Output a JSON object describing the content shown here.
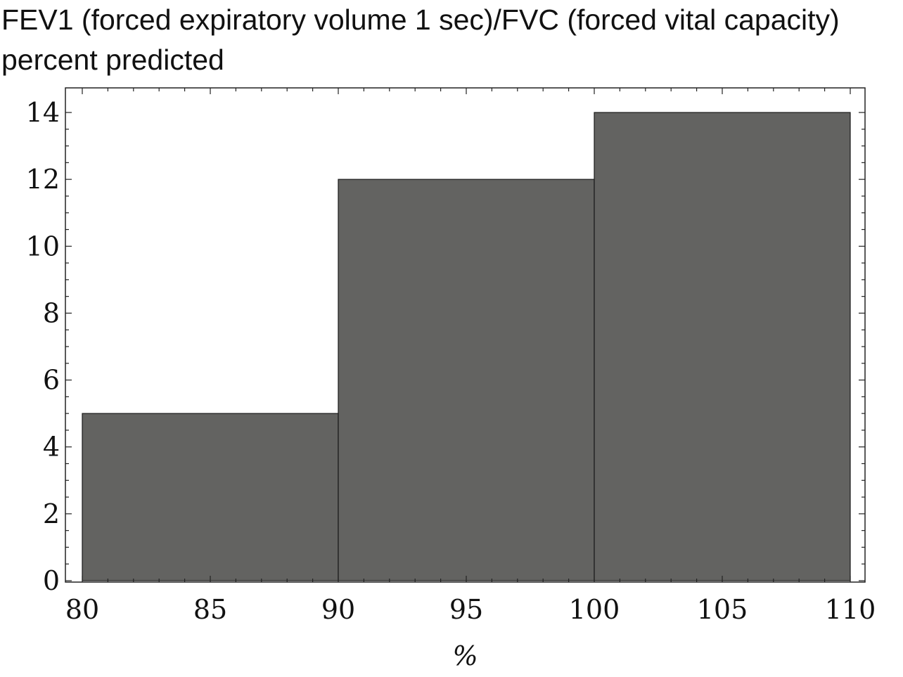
{
  "chart_data": {
    "type": "bar",
    "title": "FEV1 (forced expiratory volume 1 sec)/FVC (forced vital capacity)\npercent predicted",
    "xlabel": "%",
    "ylabel": "",
    "xlim": [
      80,
      110
    ],
    "ylim": [
      0,
      14
    ],
    "bins": [
      {
        "start": 80,
        "end": 90,
        "value": 5
      },
      {
        "start": 90,
        "end": 100,
        "value": 12
      },
      {
        "start": 100,
        "end": 110,
        "value": 14
      }
    ],
    "x_ticks": [
      80,
      85,
      90,
      95,
      100,
      105,
      110
    ],
    "y_ticks": [
      0,
      2,
      4,
      6,
      8,
      10,
      12,
      14
    ],
    "bar_color": "#636361",
    "grid": false,
    "legend": "none"
  }
}
